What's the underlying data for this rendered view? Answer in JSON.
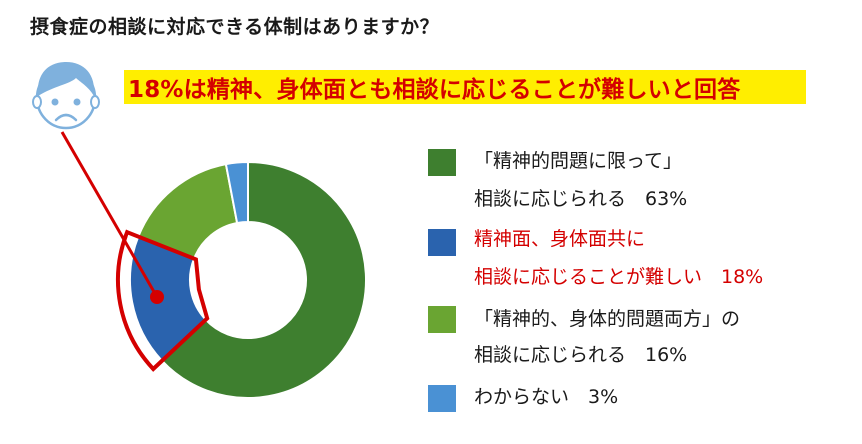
{
  "title": "摂食症の相談に対応できる体制はありますか？",
  "banner": {
    "text": "18%は精神、身体面とも相談に応じることが難しいと回答",
    "background": "#ffee00",
    "color": "#d40000"
  },
  "face_icon": "sad-face-icon",
  "legend": [
    {
      "line1": "「精神的問題に限って」",
      "line2": "相談に応じられる　63%",
      "color": "#3e7f2f",
      "highlight": false
    },
    {
      "line1": "精神面、身体面共に",
      "line2": "相談に応じることが難しい　18%",
      "color": "#2a63ae",
      "highlight": true
    },
    {
      "line1": "「精神的、身体的問題両方」の",
      "line2": "相談に応じられる　16%",
      "color": "#6aa532",
      "highlight": false
    },
    {
      "line1": "わからない　3%",
      "line2": "",
      "color": "#4a91d4",
      "highlight": false
    }
  ],
  "chart_data": {
    "type": "pie",
    "subtype": "donut",
    "title": "摂食症の相談に対応できる体制はありますか？",
    "annotation": "18%は精神、身体面とも相談に応じることが難しいと回答",
    "categories": [
      "「精神的問題に限って」相談に応じられる",
      "精神面、身体面共に相談に応じることが難しい",
      "「精神的、身体的問題両方」の相談に応じられる",
      "わからない"
    ],
    "values": [
      63,
      18,
      16,
      3
    ],
    "unit": "%",
    "colors": [
      "#3e7f2f",
      "#2a63ae",
      "#6aa532",
      "#4a91d4"
    ],
    "highlighted_slice": "精神面、身体面共に相談に応じることが難しい",
    "legend_position": "right"
  }
}
